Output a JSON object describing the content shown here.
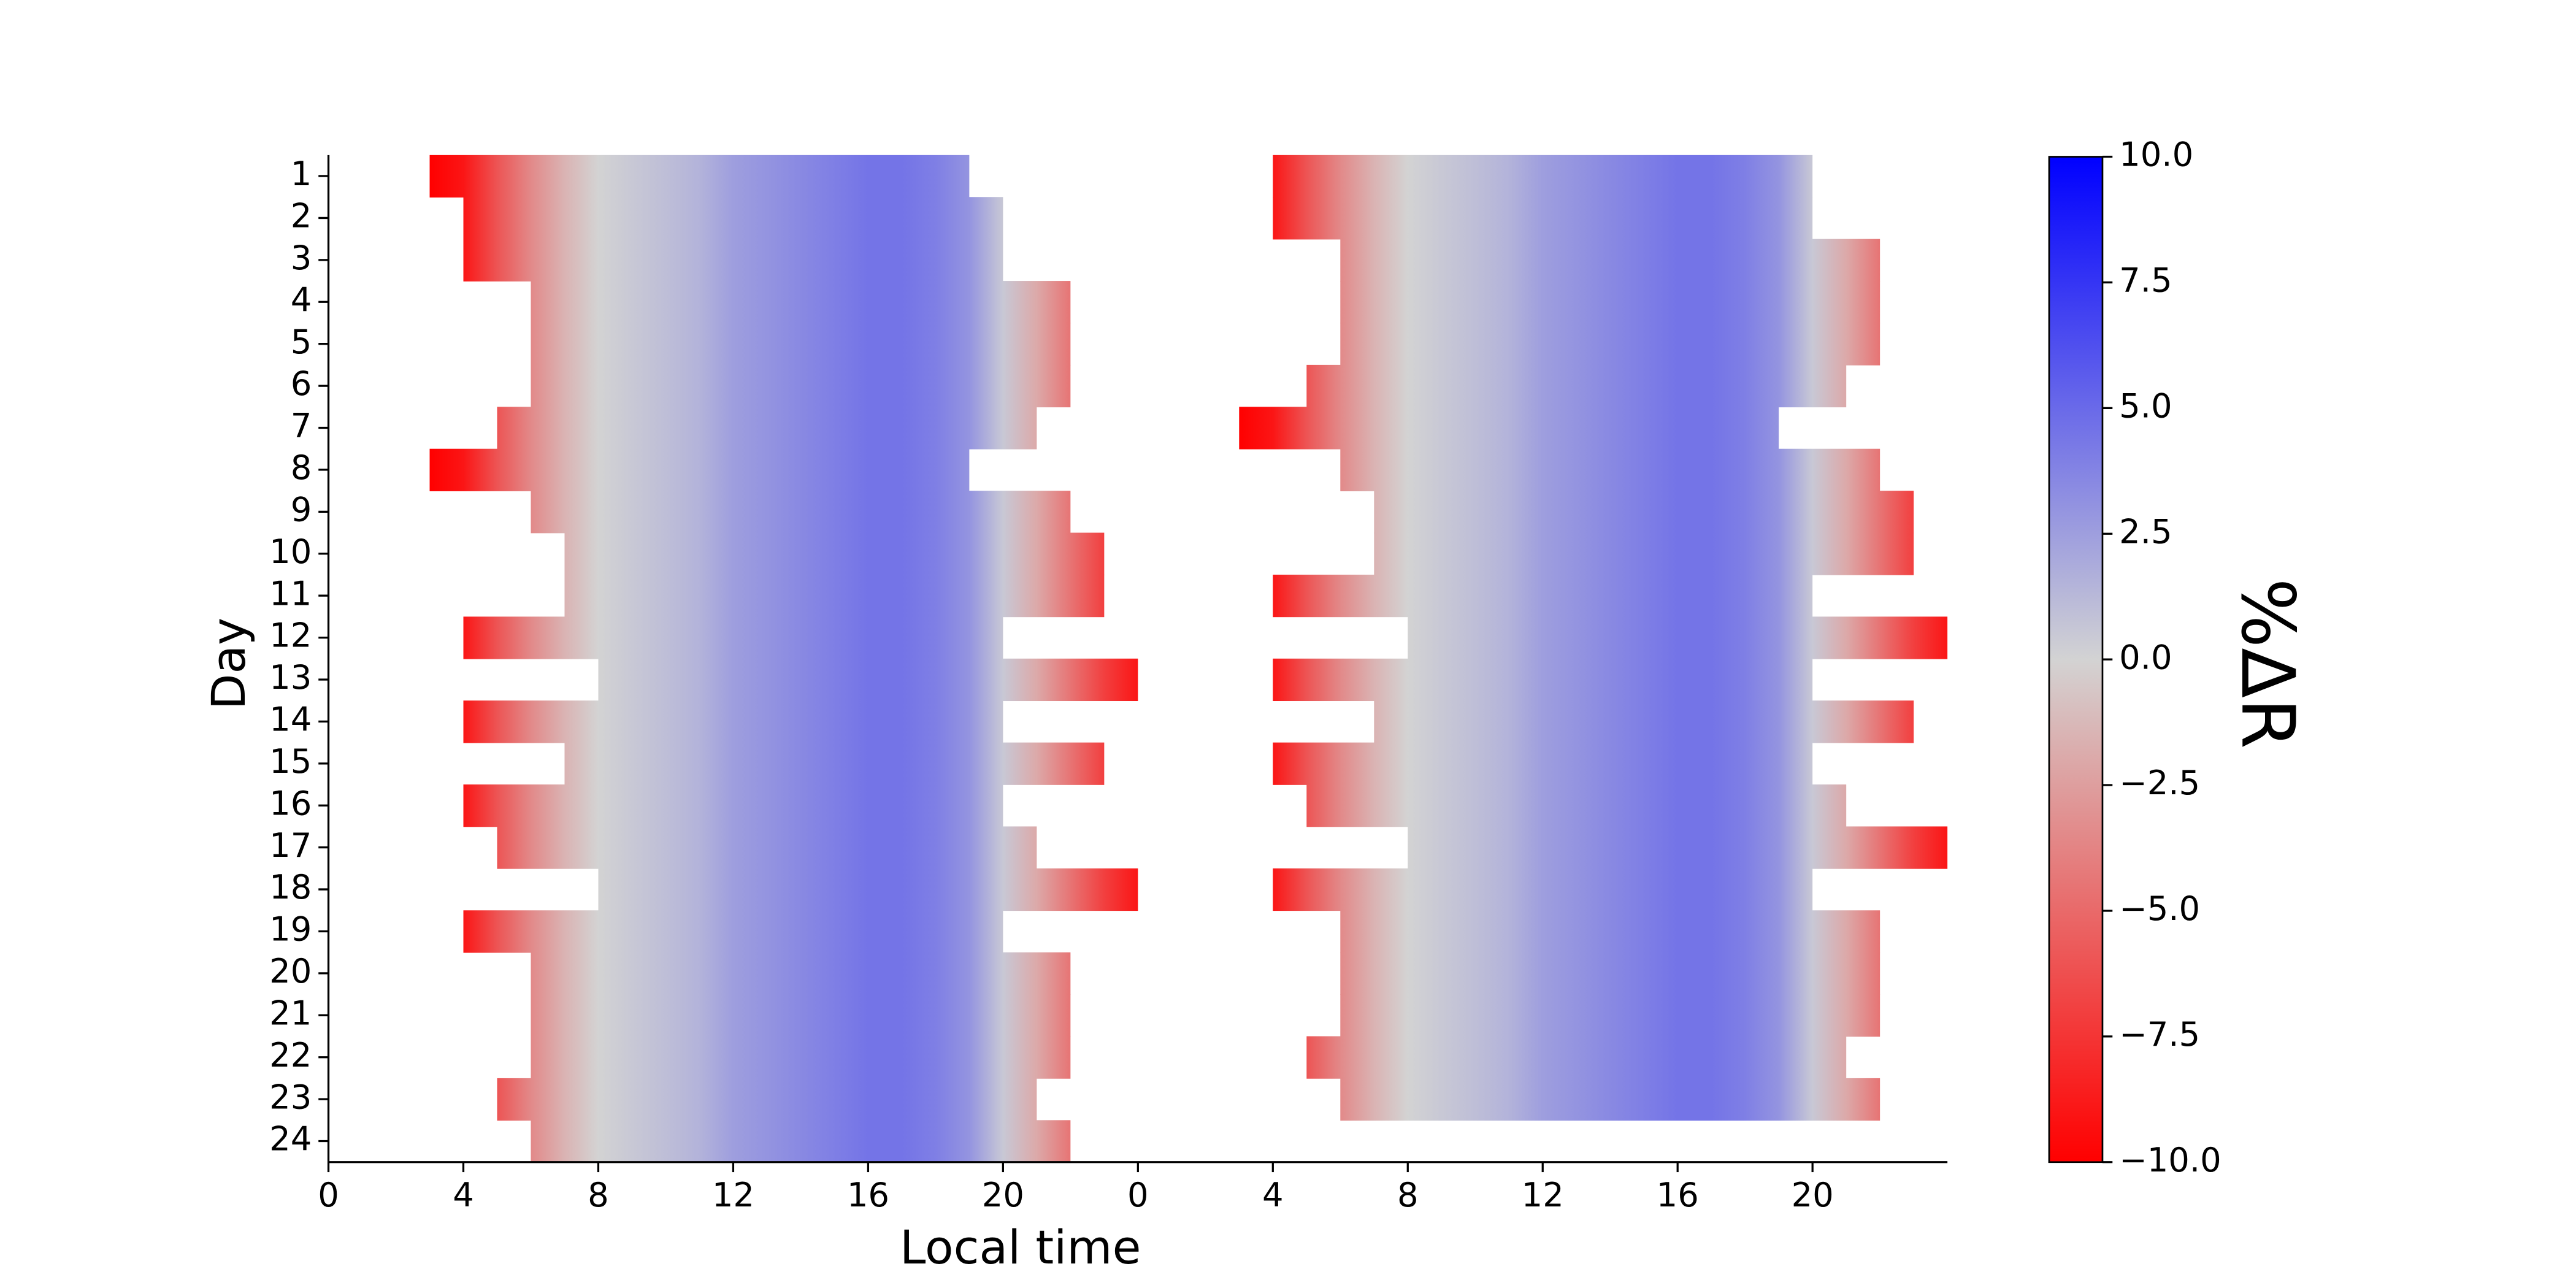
{
  "chart_data": {
    "type": "interval-heatmap",
    "xlabel": "Local time",
    "ylabel": "Day",
    "colorbar_label": "%ΔR",
    "categories": [
      "1",
      "2",
      "3",
      "4",
      "5",
      "6",
      "7",
      "8",
      "9",
      "10",
      "11",
      "12",
      "13",
      "14",
      "15",
      "16",
      "17",
      "18",
      "19",
      "20",
      "21",
      "22",
      "23",
      "24"
    ],
    "intervals": [
      [
        [
          3,
          19
        ],
        [
          28,
          44
        ]
      ],
      [
        [
          4,
          20
        ],
        [
          28,
          44
        ]
      ],
      [
        [
          4,
          20
        ],
        [
          30,
          46
        ]
      ],
      [
        [
          6,
          22
        ],
        [
          30,
          46
        ]
      ],
      [
        [
          6,
          22
        ],
        [
          30,
          46
        ]
      ],
      [
        [
          6,
          22
        ],
        [
          29,
          45
        ]
      ],
      [
        [
          5,
          21
        ],
        [
          27,
          43
        ]
      ],
      [
        [
          3,
          19
        ],
        [
          30,
          46
        ]
      ],
      [
        [
          6,
          22
        ],
        [
          31,
          47
        ]
      ],
      [
        [
          7,
          23
        ],
        [
          31,
          47
        ]
      ],
      [
        [
          7,
          23
        ],
        [
          28,
          44
        ]
      ],
      [
        [
          4,
          20
        ],
        [
          32,
          48
        ]
      ],
      [
        [
          8,
          24
        ],
        [
          28,
          44
        ]
      ],
      [
        [
          4,
          20
        ],
        [
          31,
          47
        ]
      ],
      [
        [
          7,
          23
        ],
        [
          28,
          44
        ]
      ],
      [
        [
          4,
          20
        ],
        [
          29,
          45
        ]
      ],
      [
        [
          5,
          21
        ],
        [
          32,
          48
        ]
      ],
      [
        [
          8,
          24
        ],
        [
          28,
          44
        ]
      ],
      [
        [
          4,
          20
        ],
        [
          30,
          46
        ]
      ],
      [
        [
          6,
          22
        ],
        [
          30,
          46
        ]
      ],
      [
        [
          6,
          22
        ],
        [
          30,
          46
        ]
      ],
      [
        [
          6,
          22
        ],
        [
          29,
          45
        ]
      ],
      [
        [
          5,
          21
        ],
        [
          30,
          46
        ]
      ],
      [
        [
          6,
          22
        ]
      ]
    ],
    "profile_hours": [
      0,
      1,
      2,
      3,
      4,
      5,
      6,
      7,
      8,
      9,
      10,
      11,
      12,
      13,
      14,
      15,
      16,
      17,
      18,
      19,
      20,
      21,
      22,
      23,
      24
    ],
    "profile_values": [
      -9,
      -10,
      -10,
      -10,
      -9,
      -6,
      -3.5,
      -1.5,
      0,
      0.5,
      1,
      1.5,
      2.5,
      3,
      3.5,
      4,
      4.5,
      4.5,
      4,
      3,
      0.5,
      -2,
      -4.5,
      -7,
      -9
    ],
    "cmap": [
      "#ff0000",
      "#d3d3d3",
      "#0000ff"
    ],
    "xlim": [
      0,
      48
    ],
    "xticks": [
      0,
      4,
      8,
      12,
      16,
      20,
      {
        "value": 24,
        "label": "0"
      },
      {
        "value": 28,
        "label": "4"
      },
      {
        "value": 32,
        "label": "8"
      },
      {
        "value": 36,
        "label": "12"
      },
      {
        "value": 40,
        "label": "16"
      },
      {
        "value": 44,
        "label": "20"
      }
    ],
    "clim": [
      -10,
      10
    ],
    "cticks": [
      {
        "value": 10,
        "label": "10.0"
      },
      {
        "value": 7.5,
        "label": "7.5"
      },
      {
        "value": 5,
        "label": "5.0"
      },
      2.5,
      {
        "value": 0,
        "label": "0.0"
      },
      {
        "value": -2.5,
        "label": "−2.5"
      },
      {
        "value": -5,
        "label": "−5.0"
      },
      {
        "value": -7.5,
        "label": "−7.5"
      },
      {
        "value": -10,
        "label": "−10.0"
      }
    ]
  }
}
